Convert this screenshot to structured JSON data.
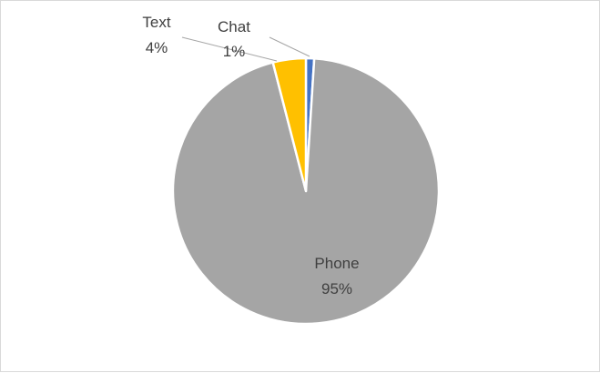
{
  "chart_data": {
    "type": "pie",
    "title": "",
    "legend": "none",
    "slices": [
      {
        "name": "Chat",
        "value": 1,
        "label": "1%",
        "color": "#4472c4"
      },
      {
        "name": "Text",
        "value": 4,
        "label": "4%",
        "color": "#ffc000"
      },
      {
        "name": "Phone",
        "value": 95,
        "label": "95%",
        "color": "#a5a5a5"
      }
    ]
  }
}
